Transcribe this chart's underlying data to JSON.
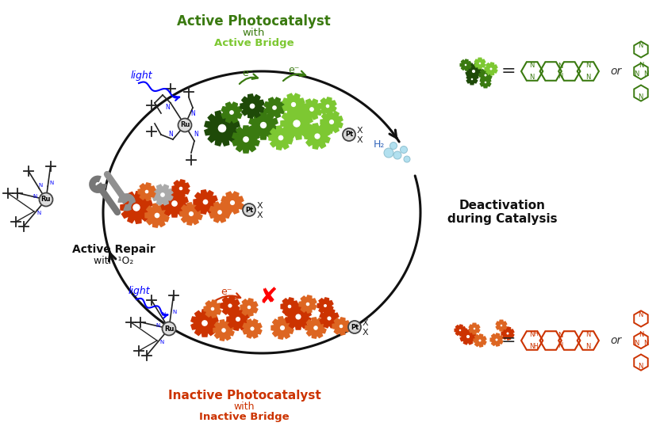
{
  "bg_color": "#ffffff",
  "green_color": "#3a7a10",
  "green_light": "#7dc832",
  "green_dark": "#1e4a08",
  "orange_color": "#cc3300",
  "orange_light": "#dd6622",
  "orange_dark": "#882200",
  "blue_color": "#3366bb",
  "blue_light": "#88ccee",
  "black_color": "#111111",
  "gray_color": "#888888",
  "text_active_title": "Active Photocatalyst",
  "text_active_sub1": "with",
  "text_active_sub2": "Active Bridge",
  "text_inactive_title": "Inactive Photocatalyst",
  "text_inactive_sub1": "with",
  "text_inactive_sub2": "Inactive Bridge",
  "text_repair": "Active Repair",
  "text_repair2": "with ¹O₂",
  "text_deactivation": "Deactivation\nduring Catalysis",
  "text_light": "light",
  "text_e": "e⁻",
  "text_H2": "H₂",
  "wrench_color": "#808080"
}
